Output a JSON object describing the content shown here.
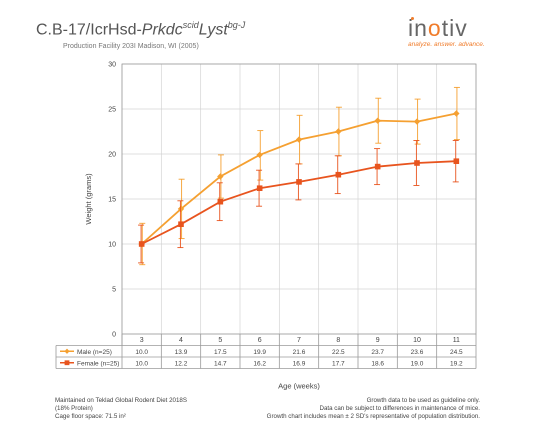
{
  "header": {
    "title_prefix": "C.B-17/IcrHsd-",
    "title_gene1": "Prkdc",
    "title_sup1": "scid",
    "title_gene2": "Lyst",
    "title_sup2": "bg-J",
    "subtitle": "Production Facility 203I Madison, WI (2005)"
  },
  "logo": {
    "word_start": "in",
    "word_o": "o",
    "word_end": "tiv",
    "tagline": "analyze. answer. advance.",
    "brand_color": "#f07c2b"
  },
  "chart_data": {
    "type": "line",
    "categories": [
      "3",
      "4",
      "5",
      "6",
      "7",
      "8",
      "9",
      "10",
      "11"
    ],
    "xlabel": "Age (weeks)",
    "ylabel": "Weight (grams)",
    "ylim": [
      0,
      30
    ],
    "yticks": [
      "0",
      "5",
      "10",
      "15",
      "20",
      "25",
      "30"
    ],
    "grid": true,
    "legend": "table below chart",
    "series": [
      {
        "name": "Male (n=25)",
        "color": "#f5a031",
        "marker": "diamond",
        "values": [
          10.0,
          13.9,
          17.5,
          19.9,
          21.6,
          22.5,
          23.7,
          23.6,
          24.5
        ],
        "labels": [
          "10.0",
          "13.9",
          "17.5",
          "19.9",
          "21.6",
          "22.5",
          "23.7",
          "23.6",
          "24.5"
        ],
        "err_low": [
          7.7,
          10.6,
          15.1,
          17.1,
          18.9,
          19.8,
          21.2,
          21.1,
          21.6
        ],
        "err_high": [
          12.3,
          17.2,
          19.9,
          22.6,
          24.3,
          25.2,
          26.2,
          26.1,
          27.4
        ]
      },
      {
        "name": "Female (n=25)",
        "color": "#e8541e",
        "marker": "square",
        "values": [
          10.0,
          12.2,
          14.7,
          16.2,
          16.9,
          17.7,
          18.6,
          19.0,
          19.2
        ],
        "labels": [
          "10.0",
          "12.2",
          "14.7",
          "16.2",
          "16.9",
          "17.7",
          "18.6",
          "19.0",
          "19.2"
        ],
        "err_low": [
          7.9,
          9.6,
          12.6,
          14.2,
          14.9,
          15.6,
          16.6,
          16.5,
          16.9
        ],
        "err_high": [
          12.1,
          14.8,
          16.8,
          18.2,
          18.9,
          19.8,
          20.6,
          21.5,
          21.5
        ]
      }
    ]
  },
  "footer": {
    "left": [
      "Maintained on Teklad Global Rodent Diet 2018S",
      "(18% Protein)",
      "Cage floor space: 71.5 in²"
    ],
    "right": [
      "Growth data to be used as guideline only.",
      "Data can be subject to differences in maintenance of mice.",
      "Growth chart includes mean ± 2 SD's representative of population distribution."
    ]
  }
}
